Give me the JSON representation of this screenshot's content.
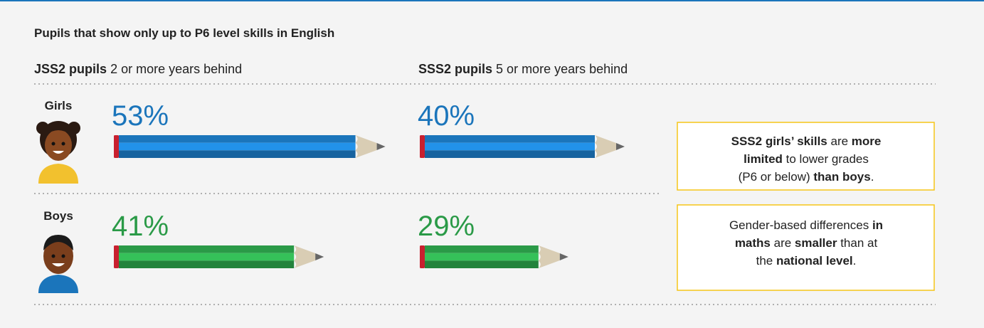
{
  "chart_data": {
    "type": "pencil-bar",
    "title": "Pupils that show only up to P6 level skills in English",
    "categories": [
      "Girls",
      "Boys"
    ],
    "category_colors": [
      "#1b75bb",
      "#2a9a47"
    ],
    "series": [
      {
        "name": "JSS2 pupils",
        "note": "2 or more years behind",
        "values": [
          53,
          41
        ],
        "value_labels": [
          "53%",
          "41%"
        ]
      },
      {
        "name": "SSS2 pupils",
        "note": "5 or more years behind",
        "values": [
          40,
          29
        ],
        "value_labels": [
          "40%",
          "29%"
        ]
      }
    ],
    "annotations": [
      [
        [
          {
            "text": "SSS2 girls’ skills",
            "bold": true
          },
          {
            "text": " are ",
            "bold": false
          },
          {
            "text": "more",
            "bold": true
          }
        ],
        [
          {
            "text": "limited",
            "bold": true
          },
          {
            "text": " to lower grades",
            "bold": false
          }
        ],
        [
          {
            "text": "(P6 or below) ",
            "bold": false
          },
          {
            "text": "than boys",
            "bold": true
          },
          {
            "text": ".",
            "bold": false
          }
        ]
      ],
      [
        [
          {
            "text": "Gender-based differences ",
            "bold": false
          },
          {
            "text": "in",
            "bold": true
          }
        ],
        [
          {
            "text": "maths",
            "bold": true
          },
          {
            "text": " are ",
            "bold": false
          },
          {
            "text": "smaller",
            "bold": true
          },
          {
            "text": " than at",
            "bold": false
          }
        ],
        [
          {
            "text": "the ",
            "bold": false
          },
          {
            "text": "national level",
            "bold": true
          },
          {
            "text": ".",
            "bold": false
          }
        ]
      ]
    ]
  }
}
